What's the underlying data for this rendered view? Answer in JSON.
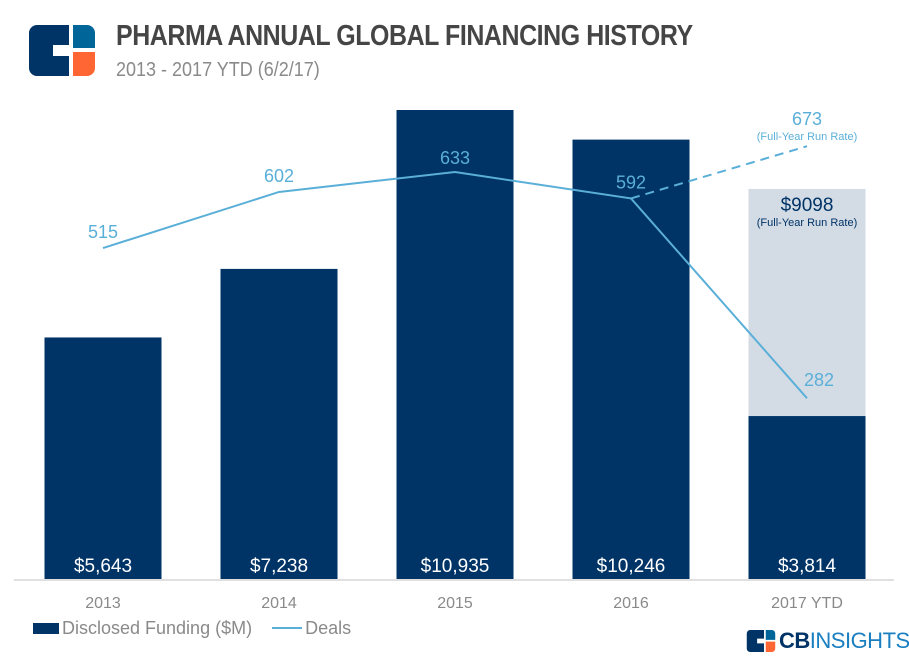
{
  "header": {
    "title": "PHARMA ANNUAL GLOBAL FINANCING HISTORY",
    "subtitle": "2013 - 2017 YTD (6/2/17)",
    "logo_icon": "cb-insights-logo-icon"
  },
  "legend": {
    "funding_label": "Disclosed Funding ($M)",
    "deals_label": "Deals"
  },
  "brand": {
    "cb": "CB",
    "insights": "INSIGHTS"
  },
  "colors": {
    "bar": "#003366",
    "projection_bar": "#d3dbe5",
    "line": "#5aafd8",
    "text_gray": "#8a8a8a",
    "title": "#454545",
    "logo_orange": "#ff6633",
    "logo_blue": "#006699"
  },
  "chart_data": {
    "type": "bar",
    "title": "PHARMA ANNUAL GLOBAL FINANCING HISTORY",
    "subtitle": "2013 - 2017 YTD (6/2/17)",
    "xlabel": "",
    "ylabel": "",
    "categories": [
      "2013",
      "2014",
      "2015",
      "2016",
      "2017 YTD"
    ],
    "grid": false,
    "legend_position": "bottom-left",
    "series": [
      {
        "name": "Disclosed Funding ($M)",
        "type": "bar",
        "values": [
          5643,
          7238,
          10935,
          10246,
          3814
        ],
        "labels": [
          "$5,643",
          "$7,238",
          "$10,935",
          "$10,246",
          "$3,814"
        ]
      },
      {
        "name": "Deals",
        "type": "line",
        "values": [
          515,
          602,
          633,
          592,
          282
        ],
        "labels": [
          "515",
          "602",
          "633",
          "592",
          "282"
        ]
      }
    ],
    "projections": {
      "funding_full_year_run_rate": {
        "category": "2017 YTD",
        "value": 9098,
        "label": "$9098",
        "note": "(Full-Year Run Rate)"
      },
      "deals_full_year_run_rate": {
        "category": "2017 YTD",
        "value": 673,
        "label": "673",
        "note": "(Full-Year Run Rate)"
      }
    },
    "funding_ylim": [
      0,
      10935
    ],
    "deals_ylim": [
      0,
      633
    ]
  }
}
